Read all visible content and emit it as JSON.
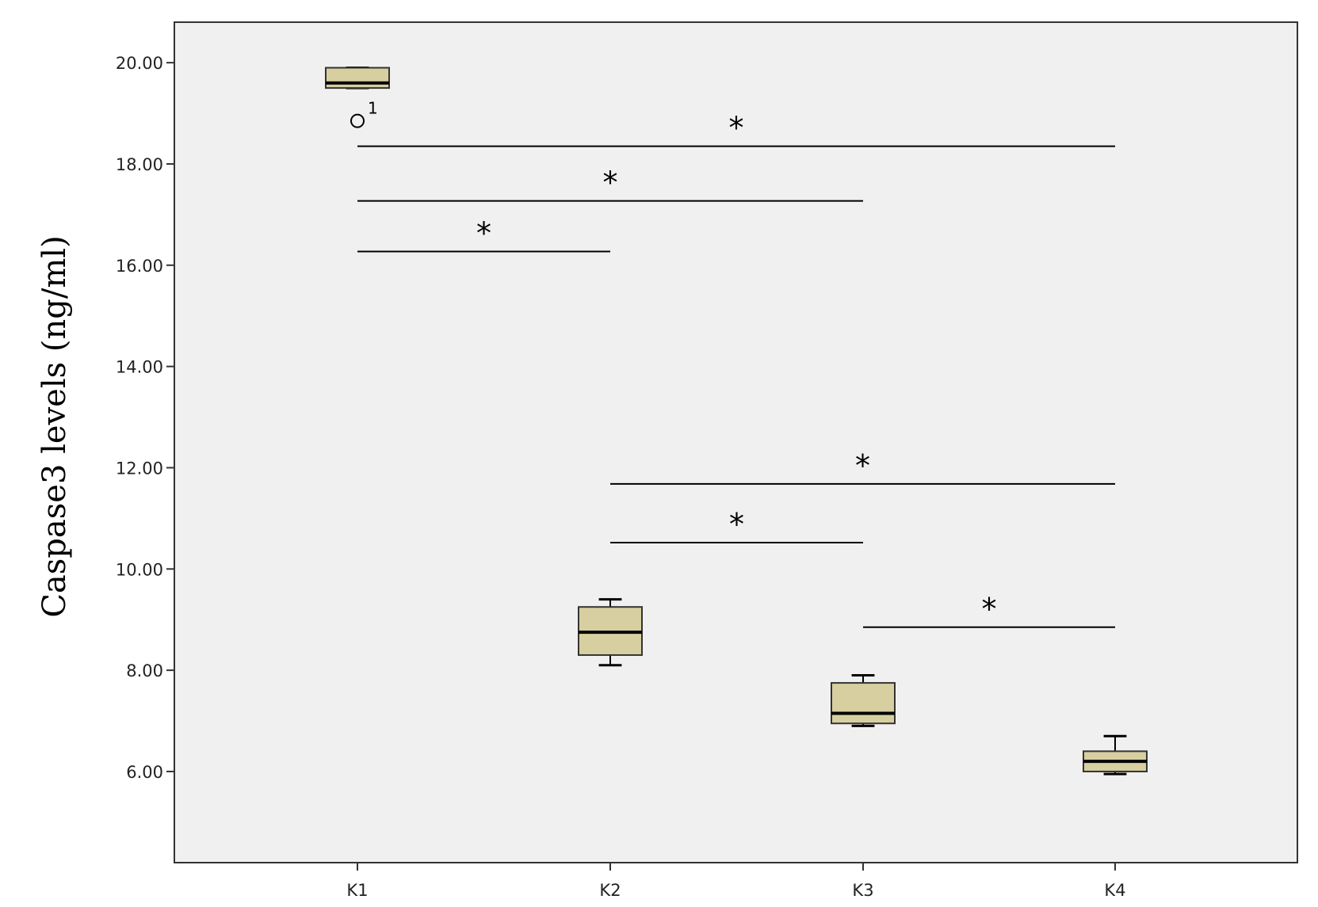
{
  "chart_data": {
    "type": "box",
    "ylabel": "Caspase3 levels (ng/ml)",
    "xlabel": "",
    "ylim": [
      4.2,
      20.8
    ],
    "yticks": [
      20.0,
      18.0,
      16.0,
      14.0,
      12.0,
      10.0,
      8.0,
      6.0
    ],
    "ytick_labels": [
      "20.00",
      "18.00",
      "16.00",
      "14.00",
      "12.00",
      "10.00",
      "8.00",
      "6.00"
    ],
    "categories": [
      "K1",
      "K2",
      "K3",
      "K4"
    ],
    "boxes": [
      {
        "category": "K1",
        "min": 19.5,
        "q1": 19.5,
        "median": 19.6,
        "q3": 19.9,
        "max": 19.9
      },
      {
        "category": "K2",
        "min": 8.1,
        "q1": 8.3,
        "median": 8.75,
        "q3": 9.25,
        "max": 9.4
      },
      {
        "category": "K3",
        "min": 6.9,
        "q1": 6.95,
        "median": 7.15,
        "q3": 7.75,
        "max": 7.9
      },
      {
        "category": "K4",
        "min": 5.95,
        "q1": 6.0,
        "median": 6.2,
        "q3": 6.4,
        "max": 6.7
      }
    ],
    "outliers": [
      {
        "category": "K1",
        "value": 18.85,
        "label": "1"
      }
    ],
    "significance": [
      {
        "from": "K1",
        "to": "K4",
        "y": 18.35,
        "label": "*"
      },
      {
        "from": "K1",
        "to": "K3",
        "y": 17.27,
        "label": "*"
      },
      {
        "from": "K1",
        "to": "K2",
        "y": 16.27,
        "label": "*"
      },
      {
        "from": "K2",
        "to": "K4",
        "y": 11.68,
        "label": "*"
      },
      {
        "from": "K2",
        "to": "K3",
        "y": 10.52,
        "label": "*"
      },
      {
        "from": "K3",
        "to": "K4",
        "y": 8.85,
        "label": "*"
      }
    ],
    "grid": false,
    "colors": {
      "box_fill": "#d8cfa0",
      "plot_background": "#f0f0f0",
      "stroke": "#000000"
    }
  }
}
